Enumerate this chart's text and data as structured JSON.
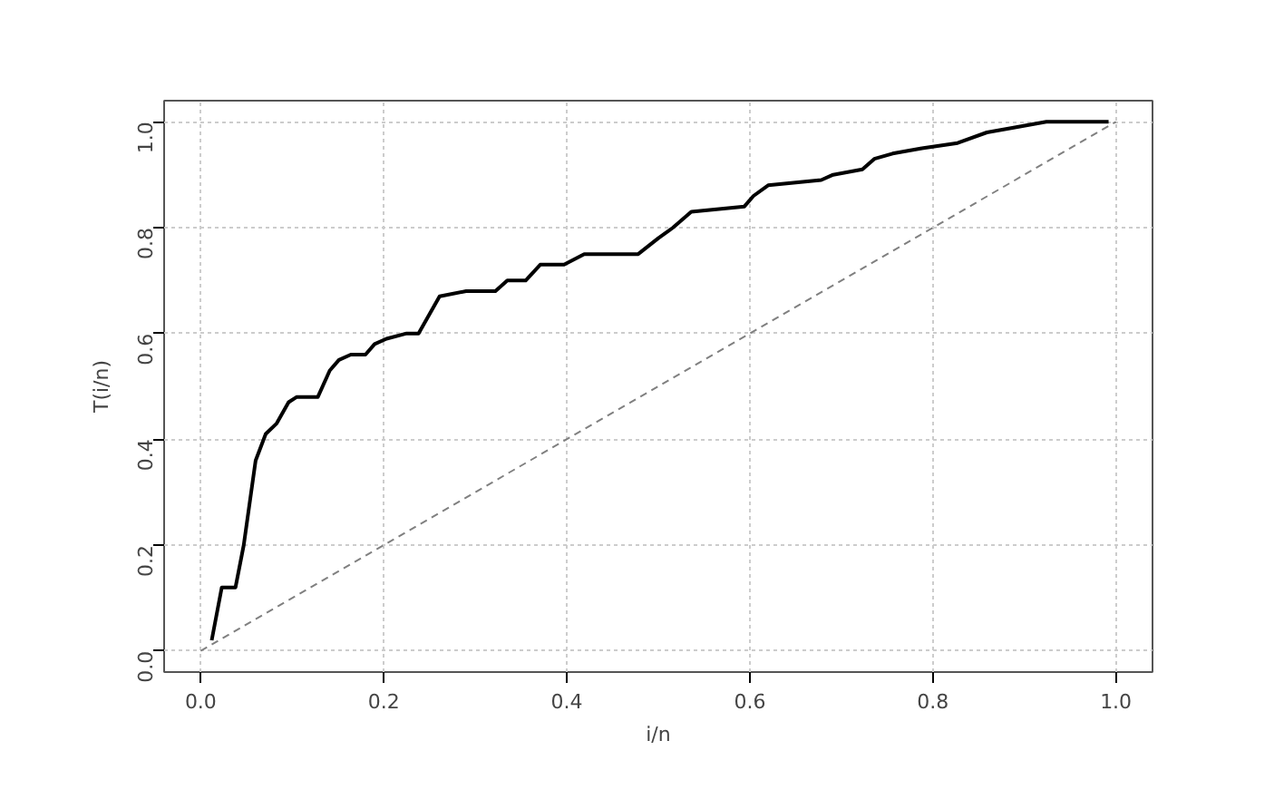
{
  "chart_data": {
    "type": "line",
    "xlabel": "i/n",
    "ylabel": "T(i/n)",
    "xlim": [
      -0.04,
      1.04
    ],
    "ylim": [
      -0.04,
      1.04
    ],
    "xticks": [
      {
        "value": 0,
        "label": "0.0"
      },
      {
        "value": 0.2,
        "label": "0.2"
      },
      {
        "value": 0.4,
        "label": "0.4"
      },
      {
        "value": 0.6,
        "label": "0.6"
      },
      {
        "value": 0.8,
        "label": "0.8"
      },
      {
        "value": 1,
        "label": "1.0"
      }
    ],
    "yticks": [
      {
        "value": 0,
        "label": "0.0"
      },
      {
        "value": 0.2,
        "label": "0.2"
      },
      {
        "value": 0.4,
        "label": "0.4"
      },
      {
        "value": 0.6,
        "label": "0.6"
      },
      {
        "value": 0.8,
        "label": "0.8"
      },
      {
        "value": 1,
        "label": "1.0"
      }
    ],
    "grid": true,
    "marker": "none",
    "series": [
      {
        "color": "#000000",
        "line_style": "solid",
        "x": [
          0.012,
          0.023,
          0.038,
          0.047,
          0.06,
          0.071,
          0.083,
          0.096,
          0.105,
          0.128,
          0.141,
          0.151,
          0.164,
          0.18,
          0.19,
          0.203,
          0.225,
          0.238,
          0.261,
          0.29,
          0.322,
          0.335,
          0.355,
          0.371,
          0.397,
          0.419,
          0.445,
          0.478,
          0.5,
          0.516,
          0.536,
          0.594,
          0.604,
          0.62,
          0.678,
          0.691,
          0.723,
          0.736,
          0.756,
          0.788,
          0.827,
          0.859,
          0.891,
          0.924,
          0.992
        ],
        "values": [
          0.02,
          0.12,
          0.12,
          0.2,
          0.36,
          0.41,
          0.43,
          0.47,
          0.48,
          0.48,
          0.53,
          0.55,
          0.56,
          0.56,
          0.58,
          0.59,
          0.6,
          0.6,
          0.67,
          0.68,
          0.68,
          0.7,
          0.7,
          0.73,
          0.73,
          0.75,
          0.75,
          0.75,
          0.78,
          0.8,
          0.83,
          0.84,
          0.86,
          0.88,
          0.89,
          0.9,
          0.91,
          0.93,
          0.94,
          0.95,
          0.96,
          0.98,
          0.99,
          1.0,
          1.0
        ]
      },
      {
        "color": "#808080",
        "line_style": "dashed",
        "x": [
          0,
          1
        ],
        "values": [
          0,
          1
        ]
      }
    ]
  }
}
